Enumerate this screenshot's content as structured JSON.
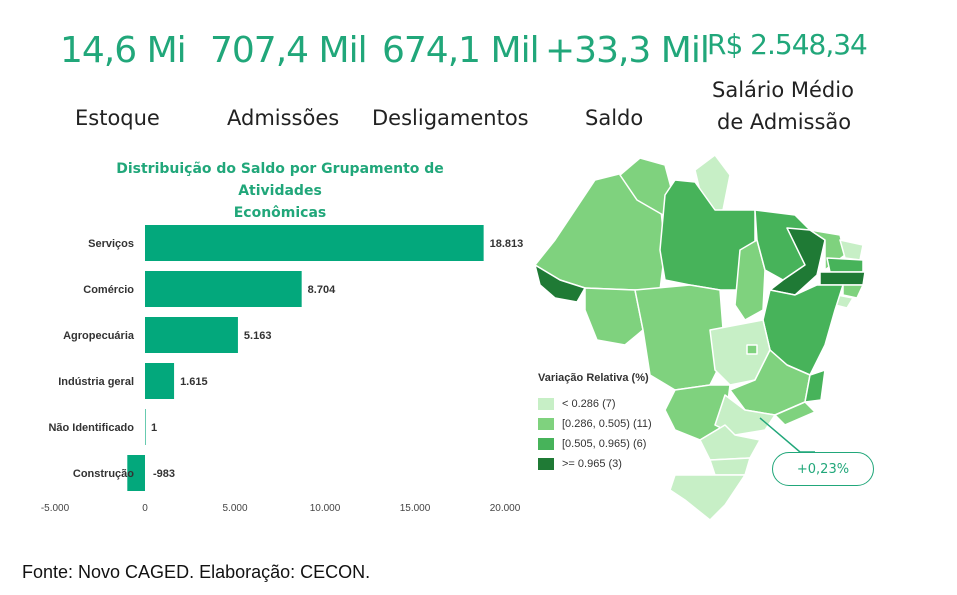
{
  "kpis": [
    {
      "value": "14,6 Mi",
      "label": "Estoque"
    },
    {
      "value": "707,4 Mil",
      "label": "Admissões"
    },
    {
      "value": "674,1 Mil",
      "label": "Desligamentos"
    },
    {
      "value": "+33,3 Mil",
      "label": "Saldo"
    },
    {
      "value": "R$ 2.548,34",
      "label_line1": "Salário Médio",
      "label_line2": "de Admissão"
    }
  ],
  "chart_data": {
    "type": "bar",
    "orientation": "horizontal",
    "title_line1": "Distribuição do Saldo por Grupamento de Atividades",
    "title_line2": "Econômicas",
    "categories": [
      "Serviços",
      "Comércio",
      "Agropecuária",
      "Indústria geral",
      "Não Identificado",
      "Construção"
    ],
    "values": [
      18813,
      8704,
      5163,
      1615,
      1,
      -983
    ],
    "value_labels": [
      "18.813",
      "8.704",
      "5.163",
      "1.615",
      "1",
      "-983"
    ],
    "xlim": [
      -5000,
      20000
    ],
    "ticks": [
      -5000,
      0,
      5000,
      10000,
      15000,
      20000
    ],
    "tick_labels": [
      "-5.000",
      "0",
      "5.000",
      "10.000",
      "15.000",
      "20.000"
    ],
    "bar_color": "#03a87c",
    "grid": false
  },
  "map": {
    "legend_title": "Variação Relativa (%)",
    "legend": [
      {
        "label": "< 0.286 (7)",
        "color": "#c7efc6"
      },
      {
        "label": "[0.286, 0.505) (11)",
        "color": "#7fd27e"
      },
      {
        "label": "[0.505, 0.965) (6)",
        "color": "#47b35a"
      },
      {
        "label": ">= 0.965 (3)",
        "color": "#1f7a35"
      }
    ],
    "callout": "+0,23%"
  },
  "source": "Fonte: Novo CAGED. Elaboração: CECON."
}
